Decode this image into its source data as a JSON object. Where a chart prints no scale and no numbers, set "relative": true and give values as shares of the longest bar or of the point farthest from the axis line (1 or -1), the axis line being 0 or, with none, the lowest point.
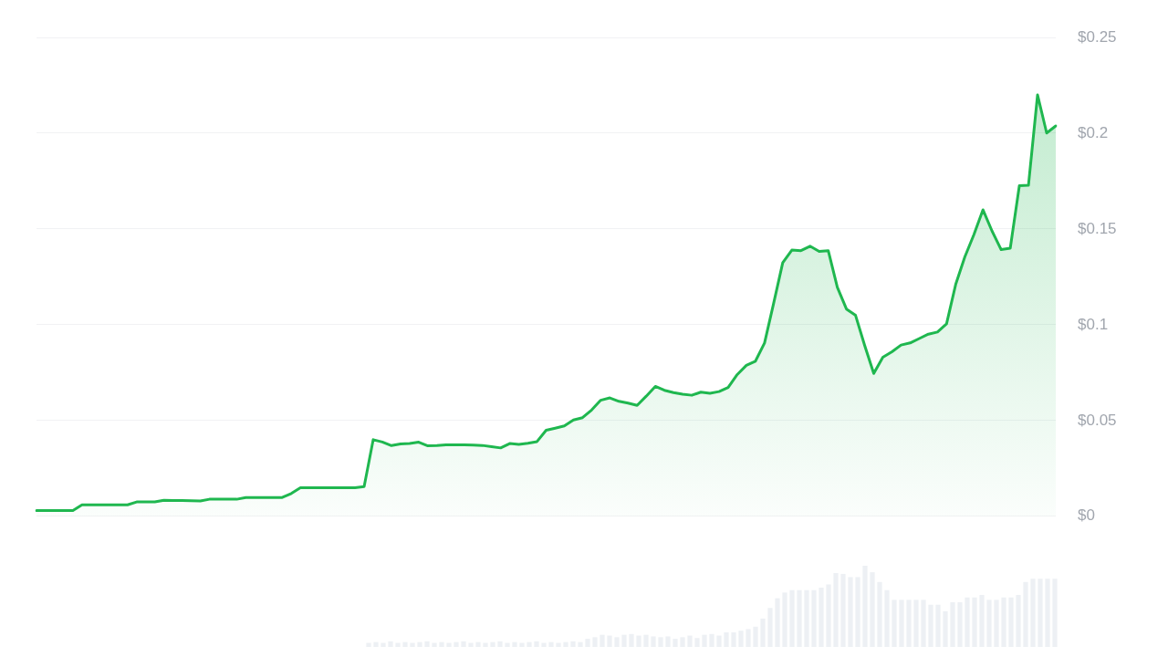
{
  "chart_data": [
    {
      "type": "area",
      "color": "#1fb74f",
      "grid": "y",
      "tick_labels": "y",
      "ylim": [
        0,
        0.25
      ],
      "yticks": [
        {
          "value": 0,
          "label": "$0"
        },
        {
          "value": 0.05,
          "label": "$0.05"
        },
        {
          "value": 0.1,
          "label": "$0.1"
        },
        {
          "value": 0.15,
          "label": "$0.15"
        },
        {
          "value": 0.2,
          "label": "$0.2"
        },
        {
          "value": 0.25,
          "label": "$0.25"
        }
      ],
      "categories": [
        null,
        null,
        null,
        null,
        null,
        null,
        null,
        null,
        null,
        null,
        null,
        null,
        null,
        null,
        null,
        null,
        null,
        null,
        null,
        null,
        null,
        null,
        null,
        null,
        null,
        null,
        null,
        null,
        null,
        null,
        null,
        null,
        null,
        null,
        null,
        null,
        null,
        null,
        null,
        null,
        null,
        null,
        null,
        null,
        null,
        null,
        null,
        null,
        null,
        null,
        null,
        null,
        null,
        null,
        null,
        null,
        null,
        null,
        null,
        null,
        null,
        null,
        null,
        null,
        null,
        null,
        null,
        null,
        null,
        null,
        null,
        null,
        null,
        null,
        null,
        null,
        null,
        null,
        null,
        null,
        null,
        null,
        null,
        null,
        null,
        null,
        null,
        null,
        null,
        null,
        null,
        null,
        null,
        null,
        null,
        null,
        null,
        null,
        null,
        null,
        null,
        null,
        null,
        null,
        null,
        null,
        null,
        null,
        null,
        null,
        null,
        null,
        null
      ],
      "values": [
        0.003,
        0.003,
        0.003,
        0.003,
        0.003,
        0.006,
        0.006,
        0.006,
        0.006,
        0.006,
        0.006,
        0.0075,
        0.0075,
        0.0075,
        0.0084,
        0.0083,
        0.0082,
        0.0081,
        0.008,
        0.0089,
        0.0089,
        0.0089,
        0.0089,
        0.0098,
        0.0098,
        0.0098,
        0.0098,
        0.0098,
        0.0119,
        0.0149,
        0.0149,
        0.0149,
        0.0149,
        0.0149,
        0.0149,
        0.0149,
        0.0155,
        0.04,
        0.0388,
        0.0369,
        0.0378,
        0.038,
        0.0387,
        0.0368,
        0.0369,
        0.0373,
        0.0373,
        0.0373,
        0.0372,
        0.037,
        0.0364,
        0.0357,
        0.038,
        0.0375,
        0.0381,
        0.039,
        0.0449,
        0.046,
        0.0472,
        0.0503,
        0.0515,
        0.0555,
        0.0606,
        0.0618,
        0.06,
        0.0591,
        0.0579,
        0.0627,
        0.0678,
        0.0658,
        0.0646,
        0.0637,
        0.0632,
        0.0648,
        0.0642,
        0.0651,
        0.0673,
        0.074,
        0.0788,
        0.081,
        0.0905,
        0.1112,
        0.1324,
        0.139,
        0.1387,
        0.141,
        0.1383,
        0.1387,
        0.1195,
        0.1082,
        0.1049,
        0.0892,
        0.0746,
        0.083,
        0.0859,
        0.0894,
        0.0905,
        0.0928,
        0.0951,
        0.0962,
        0.1005,
        0.121,
        0.1353,
        0.147,
        0.16,
        0.1489,
        0.1392,
        0.14,
        0.1726,
        0.1728,
        0.22,
        0.2001,
        0.2038
      ]
    },
    {
      "type": "bar",
      "relative": true,
      "color": "#edf0f4",
      "categories": [
        null,
        null,
        null,
        null,
        null,
        null,
        null,
        null,
        null,
        null,
        null,
        null,
        null,
        null,
        null,
        null,
        null,
        null,
        null,
        null,
        null,
        null,
        null,
        null,
        null,
        null,
        null,
        null,
        null,
        null,
        null,
        null,
        null,
        null,
        null,
        null,
        null,
        null,
        null,
        null,
        null,
        null,
        null,
        null,
        null,
        null,
        null,
        null,
        null,
        null,
        null,
        null,
        null,
        null,
        null,
        null,
        null,
        null,
        null,
        null,
        null,
        null,
        null,
        null,
        null,
        null,
        null,
        null,
        null,
        null,
        null,
        null,
        null,
        null,
        null,
        null,
        null,
        null,
        null,
        null,
        null,
        null,
        null,
        null,
        null,
        null,
        null,
        null,
        null,
        null,
        null,
        null,
        null,
        null,
        null
      ],
      "values": [
        0.05,
        0.06,
        0.05,
        0.07,
        0.05,
        0.06,
        0.05,
        0.06,
        0.07,
        0.05,
        0.06,
        0.05,
        0.06,
        0.07,
        0.05,
        0.06,
        0.05,
        0.06,
        0.07,
        0.05,
        0.06,
        0.05,
        0.06,
        0.07,
        0.05,
        0.06,
        0.05,
        0.06,
        0.07,
        0.06,
        0.1,
        0.12,
        0.15,
        0.14,
        0.12,
        0.15,
        0.16,
        0.14,
        0.15,
        0.13,
        0.12,
        0.13,
        0.1,
        0.12,
        0.14,
        0.11,
        0.15,
        0.16,
        0.14,
        0.18,
        0.18,
        0.2,
        0.22,
        0.25,
        0.35,
        0.48,
        0.6,
        0.67,
        0.7,
        0.7,
        0.7,
        0.7,
        0.73,
        0.77,
        0.91,
        0.9,
        0.86,
        0.86,
        1,
        0.92,
        0.8,
        0.7,
        0.58,
        0.58,
        0.58,
        0.58,
        0.58,
        0.52,
        0.52,
        0.44,
        0.55,
        0.55,
        0.61,
        0.61,
        0.64,
        0.58,
        0.58,
        0.61,
        0.61,
        0.64,
        0.8,
        0.84,
        0.84,
        0.84,
        0.84
      ]
    }
  ]
}
